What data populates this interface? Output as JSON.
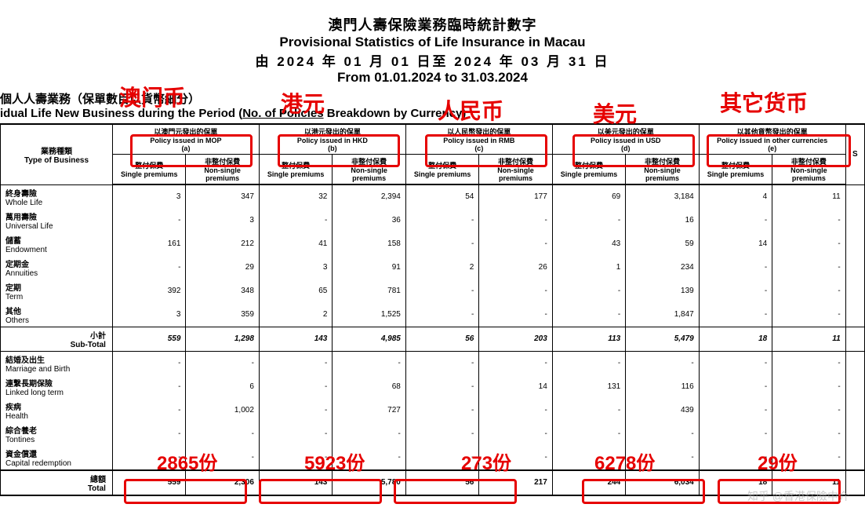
{
  "titles": {
    "zh_main": "澳門人壽保險業務臨時統計數字",
    "en_main": "Provisional Statistics of Life Insurance in Macau",
    "zh_period": "由 2024 年 01 月 01 日至 2024 年 03 月 31 日",
    "en_period": "From 01.01.2024 to 31.03.2024"
  },
  "subtitle": {
    "zh": "個人人壽業務（保單數目以貨幣細分）",
    "en_pre": "idual Life New Business during the Period (",
    "en_u": "No. of Policies",
    "en_post": " Breakdown by Currency)"
  },
  "headers": {
    "type_zh": "業務種類",
    "type_en": "Type of Business",
    "groups": [
      {
        "zh": "以澳門元發出的保單",
        "en": "Policy issued in MOP",
        "tag": "(a)"
      },
      {
        "zh": "以港元發出的保單",
        "en": "Policy issued in HKD",
        "tag": "(b)"
      },
      {
        "zh": "以人民幣發出的保單",
        "en": "Policy issued in RMB",
        "tag": "(c)"
      },
      {
        "zh": "以美元發出的保單",
        "en": "Policy issued in USD",
        "tag": "(d)"
      },
      {
        "zh": "以其他貨幣發出的保單",
        "en": "Policy issued in other currencies",
        "tag": "(e)"
      }
    ],
    "single_zh": "整付保費",
    "single_en": "Single premiums",
    "nonsingle_zh": "非整付保費",
    "nonsingle_en": "Non-single premiums",
    "last": "S"
  },
  "rows": [
    {
      "zh": "終身壽險",
      "en": "Whole Life",
      "v": [
        "3",
        "347",
        "32",
        "2,394",
        "54",
        "177",
        "69",
        "3,184",
        "4",
        "11"
      ]
    },
    {
      "zh": "萬用壽險",
      "en": "Universal Life",
      "v": [
        "-",
        "3",
        "-",
        "36",
        "-",
        "-",
        "-",
        "16",
        "-",
        "-"
      ]
    },
    {
      "zh": "儲蓄",
      "en": "Endowment",
      "v": [
        "161",
        "212",
        "41",
        "158",
        "-",
        "-",
        "43",
        "59",
        "14",
        "-"
      ]
    },
    {
      "zh": "定期金",
      "en": "Annuities",
      "v": [
        "-",
        "29",
        "3",
        "91",
        "2",
        "26",
        "1",
        "234",
        "-",
        "-"
      ]
    },
    {
      "zh": "定期",
      "en": "Term",
      "v": [
        "392",
        "348",
        "65",
        "781",
        "-",
        "-",
        "-",
        "139",
        "-",
        "-"
      ]
    },
    {
      "zh": "其他",
      "en": "Others",
      "v": [
        "3",
        "359",
        "2",
        "1,525",
        "-",
        "-",
        "-",
        "1,847",
        "-",
        "-"
      ]
    }
  ],
  "subtotal": {
    "zh": "小計",
    "en": "Sub-Total",
    "v": [
      "559",
      "1,298",
      "143",
      "4,985",
      "56",
      "203",
      "113",
      "5,479",
      "18",
      "11"
    ]
  },
  "rows2": [
    {
      "zh": "結婚及出生",
      "en": "Marriage and Birth",
      "v": [
        "-",
        "-",
        "-",
        "-",
        "-",
        "-",
        "-",
        "-",
        "-",
        "-"
      ]
    },
    {
      "zh": "連繫長期保險",
      "en": "Linked long term",
      "v": [
        "-",
        "6",
        "-",
        "68",
        "-",
        "14",
        "131",
        "116",
        "-",
        "-"
      ]
    },
    {
      "zh": "疾病",
      "en": "Health",
      "v": [
        "-",
        "1,002",
        "-",
        "727",
        "-",
        "-",
        "-",
        "439",
        "-",
        "-"
      ]
    },
    {
      "zh": "綜合養老",
      "en": "Tontines",
      "v": [
        "-",
        "-",
        "-",
        "-",
        "-",
        "-",
        "-",
        "-",
        "-",
        "-"
      ]
    },
    {
      "zh": "資金償還",
      "en": "Capital redemption",
      "v": [
        "-",
        "-",
        "-",
        "-",
        "-",
        "-",
        "-",
        "-",
        "-",
        "-"
      ]
    }
  ],
  "total": {
    "zh": "總額",
    "en": "Total",
    "v": [
      "559",
      "2,306",
      "143",
      "5,780",
      "56",
      "217",
      "244",
      "6,034",
      "18",
      "11"
    ]
  },
  "callouts": {
    "top": [
      "澳门币",
      "港元",
      "人民币",
      "美元",
      "其它货币"
    ],
    "bottom": [
      "2865份",
      "5923份",
      "273份",
      "6278份",
      "29份"
    ]
  },
  "watermark": "知乎 @香港保險中介",
  "style": {
    "red": "#e60000",
    "black": "#000000",
    "bg": "#ffffff"
  }
}
